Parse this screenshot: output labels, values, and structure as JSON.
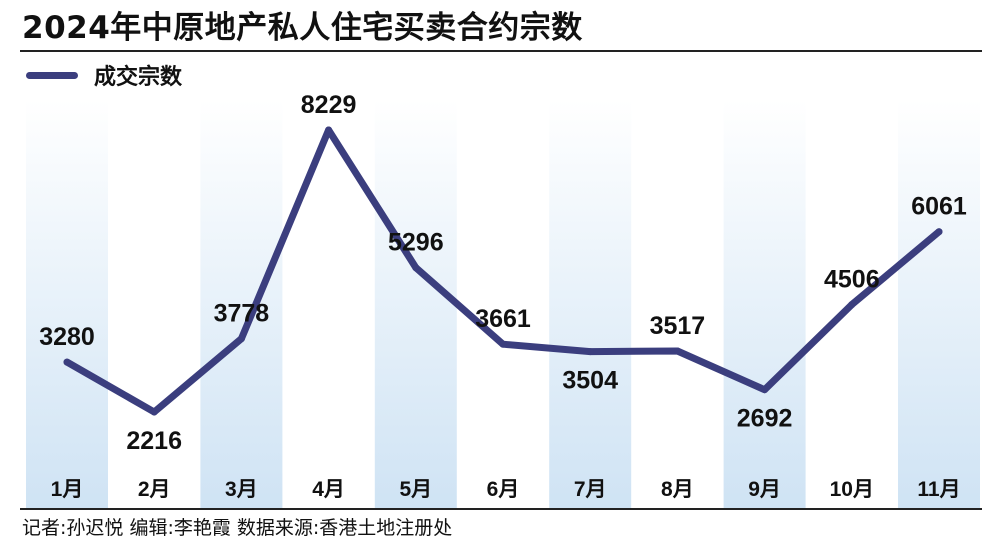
{
  "header": {
    "title": "2024年中原地产私人住宅买卖合约宗数"
  },
  "footer": {
    "credits": "记者:孙迟悦  编辑:李艳霞  数据来源:香港土地注册处"
  },
  "colors": {
    "line": "#3b3e7e",
    "band_top": "#ffffff",
    "band_bottom": "#cfe3f4",
    "text": "#111111"
  },
  "chart_data": {
    "type": "line",
    "title": "2024年中原地产私人住宅买卖合约宗数",
    "categories": [
      "1月",
      "2月",
      "3月",
      "4月",
      "5月",
      "6月",
      "7月",
      "8月",
      "9月",
      "10月",
      "11月"
    ],
    "series": [
      {
        "name": "成交宗数",
        "values": [
          3280,
          2216,
          3778,
          8229,
          5296,
          3661,
          3504,
          3517,
          2692,
          4506,
          6061
        ]
      }
    ],
    "data_labels": [
      "3280",
      "2216",
      "3778",
      "8229",
      "5296",
      "3661",
      "3504",
      "3517",
      "2692",
      "4506",
      "6061"
    ],
    "grid": false,
    "legend": "top-left",
    "background": "alternating vertical gradient bands per month"
  }
}
